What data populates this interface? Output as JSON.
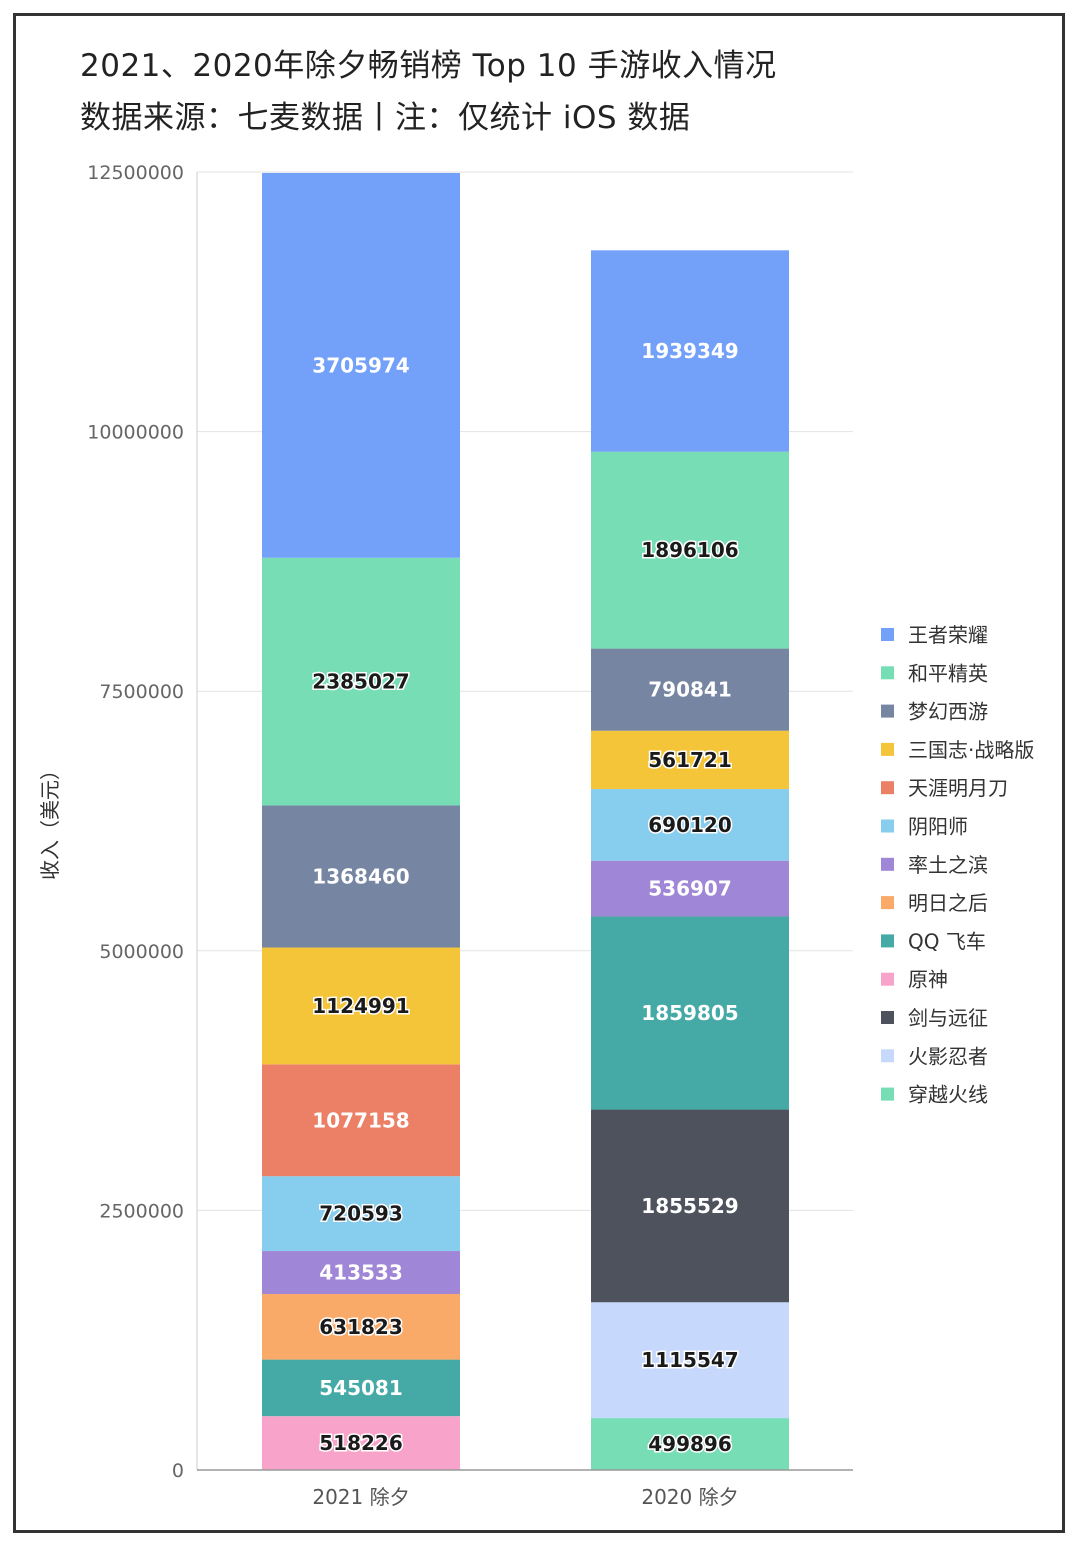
{
  "title": "2021、2020年除夕畅销榜 Top 10 手游收入情况",
  "subtitle": "数据来源：七麦数据丨注：仅统计 iOS 数据",
  "chart_data": {
    "type": "bar",
    "stacked": true,
    "categories": [
      "2021 除夕",
      "2020 除夕"
    ],
    "ylabel": "收入（美元）",
    "xlabel": "",
    "ylim": [
      0,
      12500000
    ],
    "yticks": [
      0,
      2500000,
      5000000,
      7500000,
      10000000,
      12500000
    ],
    "grid": true,
    "legend_position": "right",
    "series": [
      {
        "name": "穿越火线",
        "color": "#76DDB4",
        "values": [
          null,
          499896
        ]
      },
      {
        "name": "火影忍者",
        "color": "#C6D8FB",
        "values": [
          null,
          1115547
        ]
      },
      {
        "name": "剑与远征",
        "color": "#4D525D",
        "values": [
          null,
          1855529
        ]
      },
      {
        "name": "原神",
        "color": "#F8A4CA",
        "values": [
          518226,
          null
        ]
      },
      {
        "name": "QQ 飞车",
        "color": "#45A9A6",
        "values": [
          545081,
          1859805
        ]
      },
      {
        "name": "明日之后",
        "color": "#F9A968",
        "values": [
          631823,
          null
        ]
      },
      {
        "name": "率土之滨",
        "color": "#A086D6",
        "values": [
          413533,
          536907
        ]
      },
      {
        "name": "阴阳师",
        "color": "#87CDED",
        "values": [
          720593,
          690120
        ]
      },
      {
        "name": "天涯明月刀",
        "color": "#EC8066",
        "values": [
          1077158,
          null
        ]
      },
      {
        "name": "三国志·战略版",
        "color": "#F4C538",
        "values": [
          1124991,
          561721
        ]
      },
      {
        "name": "梦幻西游",
        "color": "#7685A1",
        "values": [
          1368460,
          790841
        ]
      },
      {
        "name": "和平精英",
        "color": "#76DDB4",
        "values": [
          2385027,
          1896106
        ]
      },
      {
        "name": "王者荣耀",
        "color": "#73A0F9",
        "values": [
          3705974,
          1939349
        ]
      }
    ],
    "legend_order": [
      "王者荣耀",
      "和平精英",
      "梦幻西游",
      "三国志·战略版",
      "天涯明月刀",
      "阴阳师",
      "率土之滨",
      "明日之后",
      "QQ 飞车",
      "原神",
      "剑与远征",
      "火影忍者",
      "穿越火线"
    ],
    "dark_label_series": [
      "和平精英",
      "三国志·战略版",
      "阴阳师",
      "明日之后",
      "原神",
      "火影忍者",
      "穿越火线"
    ]
  }
}
